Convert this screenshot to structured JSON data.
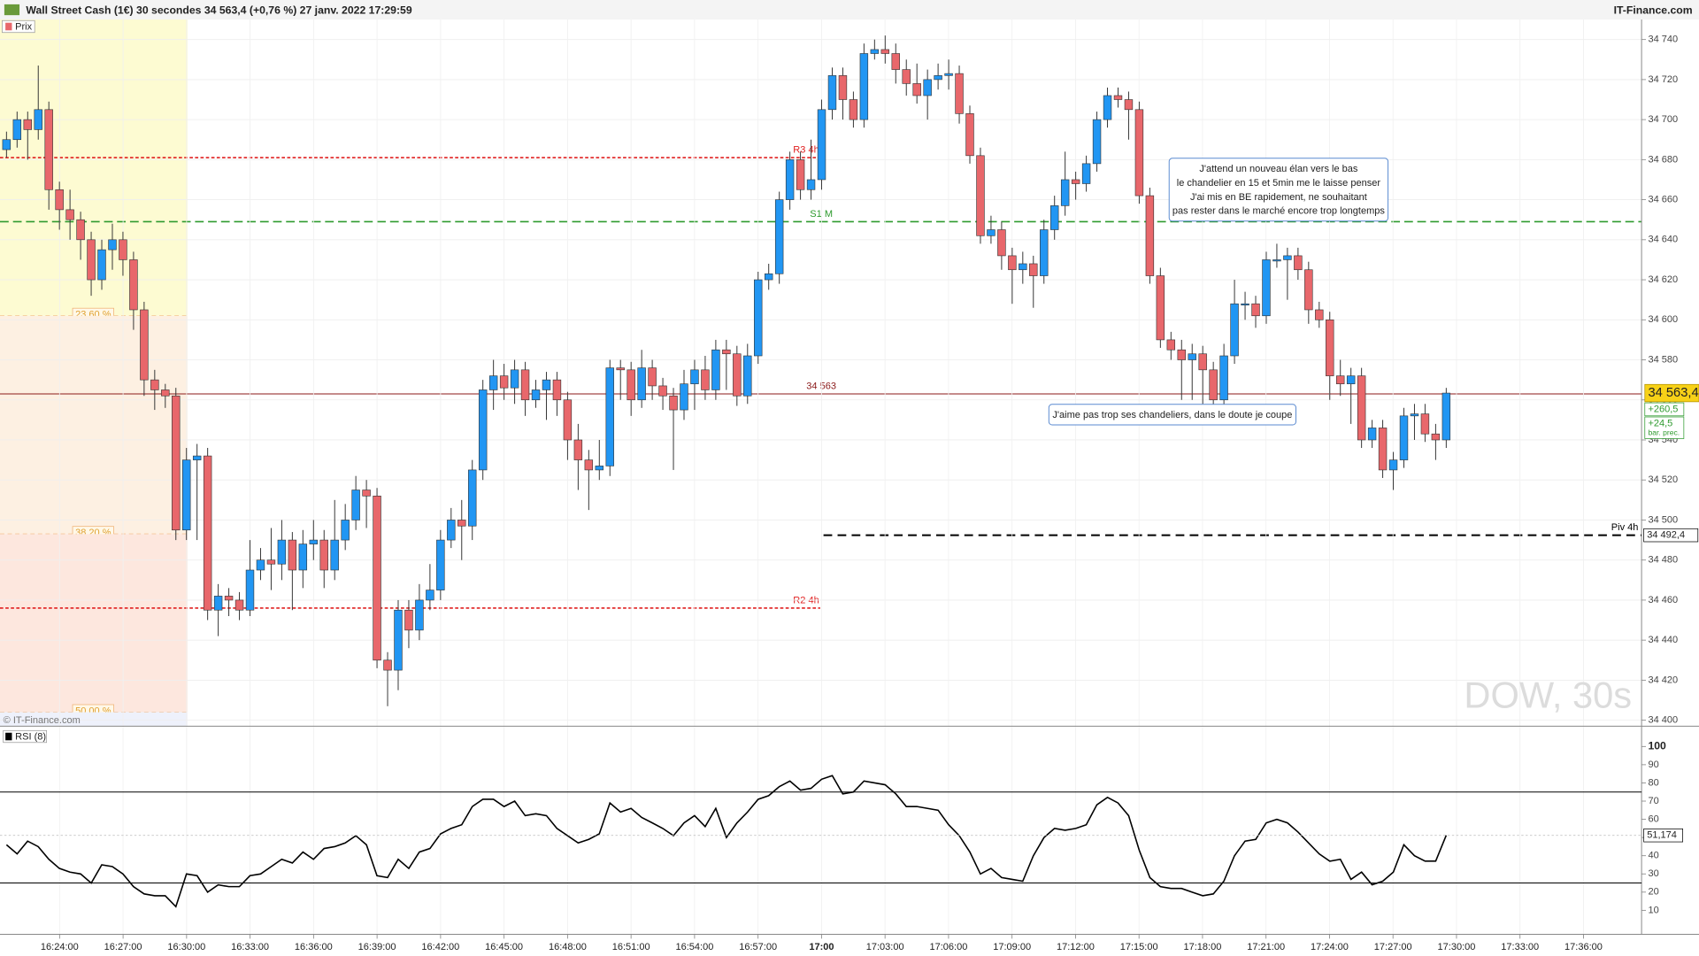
{
  "chart_data": {
    "type": "candlestick",
    "title": "Wall Street Cash (1€) 30 secondes 34 563,4 (+0,76 %) 27 janv. 2022 17:29:59",
    "brand": "IT-Finance.com",
    "price_label": "Prix",
    "copyright": "© IT-Finance.com",
    "watermark": "DOW, 30s",
    "up_color": "#2196f3",
    "down_color": "#e8676b",
    "ylim": [
      34397,
      34750
    ],
    "yticks": [
      {
        "value": 34400,
        "label": "34 400"
      },
      {
        "value": 34420,
        "label": "34 420"
      },
      {
        "value": 34440,
        "label": "34 440"
      },
      {
        "value": 34460,
        "label": "34 460"
      },
      {
        "value": 34480,
        "label": "34 480"
      },
      {
        "value": 34500,
        "label": "34 500"
      },
      {
        "value": 34520,
        "label": "34 520"
      },
      {
        "value": 34540,
        "label": "34 540"
      },
      {
        "value": 34560,
        "label": "34 560"
      },
      {
        "value": 34580,
        "label": "34 580"
      },
      {
        "value": 34600,
        "label": "34 600"
      },
      {
        "value": 34620,
        "label": "34 620"
      },
      {
        "value": 34640,
        "label": "34 640"
      },
      {
        "value": 34660,
        "label": "34 660"
      },
      {
        "value": 34680,
        "label": "34 680"
      },
      {
        "value": 34700,
        "label": "34 700"
      },
      {
        "value": 34720,
        "label": "34 720"
      },
      {
        "value": 34740,
        "label": "34 740"
      }
    ],
    "time_labels": [
      "16:24:00",
      "16:27:00",
      "16:30:00",
      "16:33:00",
      "16:36:00",
      "16:39:00",
      "16:42:00",
      "16:45:00",
      "16:48:00",
      "16:51:00",
      "16:54:00",
      "16:57:00",
      "17:00",
      "17:03:00",
      "17:06:00",
      "17:09:00",
      "17:12:00",
      "17:15:00",
      "17:18:00",
      "17:21:00",
      "17:24:00",
      "17:27:00",
      "17:30:00",
      "17:33:00",
      "17:36:00"
    ],
    "open": [
      34685,
      34690,
      34700,
      34695,
      34705,
      34665,
      34655,
      34650,
      34640,
      34620,
      34635,
      34640,
      34630,
      34605,
      34570,
      34565,
      34562,
      34495,
      34530,
      34532,
      34455,
      34462,
      34460,
      34455,
      34475,
      34480,
      34478,
      34490,
      34475,
      34488,
      34490,
      34475,
      34490,
      34500,
      34515,
      34512,
      34430,
      34425,
      34455,
      34445,
      34460,
      34465,
      34490,
      34500,
      34497,
      34525,
      34565,
      34572,
      34566,
      34575,
      34560,
      34565,
      34570,
      34560,
      34540,
      34530,
      34525,
      34527,
      34576,
      34575,
      34560,
      34576,
      34567,
      34562,
      34555,
      34568,
      34575,
      34565,
      34585,
      34583,
      34562,
      34582,
      34620,
      34623,
      34660,
      34680,
      34665,
      34670,
      34705,
      34722,
      34710,
      34700,
      34733,
      34735,
      34733,
      34725,
      34718,
      34712,
      34720,
      34722,
      34723,
      34703,
      34682,
      34642,
      34645,
      34632,
      34625,
      34628,
      34622,
      34645,
      34657,
      34670,
      34668,
      34678,
      34700,
      34712,
      34710,
      34705,
      34662,
      34622,
      34590,
      34585,
      34580,
      34583,
      34575,
      34560,
      34582,
      34608,
      34608,
      34602,
      34630,
      34630,
      34632,
      34625,
      34605,
      34600,
      34572,
      34568,
      34572,
      34540,
      34546,
      34525,
      34530,
      34552,
      34553,
      34543,
      34540
    ],
    "high": [
      34694,
      34704,
      34704,
      34727,
      34709,
      34669,
      34665,
      34654,
      34644,
      34640,
      34648,
      34644,
      34634,
      34609,
      34575,
      34568,
      34566,
      34536,
      34538,
      34536,
      34468,
      34466,
      34464,
      34490,
      34486,
      34496,
      34500,
      34494,
      34495,
      34500,
      34495,
      34510,
      34508,
      34522,
      34520,
      34516,
      34434,
      34460,
      34460,
      34468,
      34478,
      34495,
      34506,
      34510,
      34530,
      34570,
      34580,
      34578,
      34580,
      34579,
      34570,
      34574,
      34574,
      34564,
      34548,
      34535,
      34540,
      34580,
      34580,
      34579,
      34585,
      34580,
      34571,
      34566,
      34575,
      34580,
      34582,
      34590,
      34590,
      34587,
      34588,
      34624,
      34628,
      34664,
      34684,
      34684,
      34690,
      34710,
      34726,
      34726,
      34714,
      34738,
      34740,
      34742,
      34738,
      34730,
      34728,
      34725,
      34728,
      34730,
      34727,
      34707,
      34686,
      34652,
      34649,
      34636,
      34634,
      34632,
      34650,
      34662,
      34684,
      34674,
      34682,
      34704,
      34716,
      34716,
      34714,
      34709,
      34666,
      34626,
      34594,
      34590,
      34588,
      34587,
      34579,
      34588,
      34620,
      34614,
      34612,
      34634,
      34638,
      34636,
      34636,
      34629,
      34609,
      34604,
      34580,
      34576,
      34576,
      34550,
      34550,
      34534,
      34556,
      34558,
      34558,
      34548,
      34566
    ],
    "low": [
      34681,
      34686,
      34680,
      34690,
      34655,
      34645,
      34640,
      34630,
      34612,
      34615,
      34625,
      34622,
      34595,
      34562,
      34555,
      34556,
      34490,
      34490,
      34490,
      34450,
      34442,
      34452,
      34450,
      34452,
      34470,
      34465,
      34470,
      34455,
      34466,
      34480,
      34466,
      34470,
      34485,
      34495,
      34496,
      34426,
      34407,
      34415,
      34436,
      34440,
      34455,
      34460,
      34486,
      34480,
      34490,
      34520,
      34555,
      34560,
      34558,
      34552,
      34556,
      34550,
      34552,
      34530,
      34515,
      34505,
      34520,
      34522,
      34560,
      34552,
      34556,
      34560,
      34555,
      34525,
      34550,
      34555,
      34560,
      34560,
      34565,
      34557,
      34558,
      34578,
      34615,
      34618,
      34655,
      34660,
      34660,
      34665,
      34700,
      34700,
      34696,
      34696,
      34730,
      34728,
      34718,
      34712,
      34708,
      34700,
      34715,
      34715,
      34698,
      34678,
      34638,
      34638,
      34625,
      34608,
      34618,
      34606,
      34618,
      34640,
      34652,
      34660,
      34664,
      34674,
      34696,
      34706,
      34690,
      34658,
      34618,
      34586,
      34580,
      34560,
      34560,
      34558,
      34556,
      34556,
      34578,
      34600,
      34596,
      34598,
      34626,
      34610,
      34620,
      34598,
      34596,
      34560,
      34562,
      34548,
      34536,
      34536,
      34521,
      34515,
      34526,
      34540,
      34539,
      34530,
      34536
    ],
    "close": [
      34690,
      34700,
      34695,
      34705,
      34665,
      34655,
      34650,
      34640,
      34620,
      34635,
      34640,
      34630,
      34605,
      34570,
      34565,
      34562,
      34495,
      34530,
      34532,
      34455,
      34462,
      34460,
      34455,
      34475,
      34480,
      34478,
      34490,
      34475,
      34488,
      34490,
      34475,
      34490,
      34500,
      34515,
      34512,
      34430,
      34425,
      34455,
      34445,
      34460,
      34465,
      34490,
      34500,
      34497,
      34525,
      34565,
      34572,
      34566,
      34575,
      34560,
      34565,
      34570,
      34560,
      34540,
      34530,
      34525,
      34527,
      34576,
      34575,
      34560,
      34576,
      34567,
      34562,
      34555,
      34568,
      34575,
      34565,
      34585,
      34583,
      34562,
      34582,
      34620,
      34623,
      34660,
      34680,
      34665,
      34670,
      34705,
      34722,
      34710,
      34700,
      34733,
      34735,
      34733,
      34725,
      34718,
      34712,
      34720,
      34722,
      34723,
      34703,
      34682,
      34642,
      34645,
      34632,
      34625,
      34628,
      34622,
      34645,
      34657,
      34670,
      34668,
      34678,
      34700,
      34712,
      34710,
      34705,
      34662,
      34622,
      34590,
      34585,
      34580,
      34583,
      34575,
      34560,
      34582,
      34608,
      34608,
      34602,
      34630,
      34630,
      34632,
      34625,
      34605,
      34600,
      34572,
      34568,
      34572,
      34540,
      34546,
      34525,
      34530,
      34552,
      34553,
      34543,
      34540,
      34563.4
    ],
    "last_label": "34 563,4",
    "change_label": "+260,5",
    "bar_change_label": "+24,5",
    "bar_note": "bar. prec.",
    "levels": [
      {
        "label": "R3 4h",
        "value": 34681,
        "color": "#e02020"
      },
      {
        "label": "S1 M",
        "value": 34649,
        "color": "#2e9a2e"
      },
      {
        "label": "34 563",
        "value": 34563,
        "color": "#8b1a1a"
      },
      {
        "label": "R2 4h",
        "value": 34456,
        "color": "#e02020"
      },
      {
        "label": "Piv 4h",
        "value": 34492.4,
        "color": "#000000",
        "axis_label": "34 492,4"
      }
    ],
    "fib_levels": [
      {
        "label": "23,60 %",
        "value": 34602
      },
      {
        "label": "38,20 %",
        "value": 34493
      },
      {
        "label": "50,00 %",
        "value": 34404
      }
    ],
    "annotations": [
      {
        "lines": [
          "J'attend un nouveau élan vers le bas",
          "le chandelier en 15 et 5min me le laisse penser",
          "J'ai mis en BE rapidement, ne souhaitant",
          "pas rester dans le marché encore trop longtemps"
        ]
      },
      {
        "lines": [
          "J'aime pas trop ses chandeliers, dans le doute je coupe"
        ]
      }
    ],
    "rsi": {
      "label": "RSI (8)",
      "ylim": [
        -2,
        104
      ],
      "yticks": [
        10,
        20,
        30,
        40,
        50,
        60,
        70,
        80,
        90,
        100
      ],
      "bands": [
        25,
        75
      ],
      "last_label": "51,174",
      "values": [
        46,
        41,
        48,
        45,
        38,
        33,
        31,
        30,
        25,
        35,
        34,
        30,
        23,
        19,
        18,
        18,
        12,
        30,
        29,
        20,
        24,
        23,
        23,
        29,
        30,
        34,
        38,
        36,
        42,
        38,
        44,
        45,
        47,
        51,
        46,
        29,
        28,
        38,
        33,
        42,
        44,
        52,
        55,
        57,
        67,
        71,
        71,
        67,
        70,
        62,
        63,
        62,
        55,
        51,
        47,
        49,
        52,
        69,
        64,
        66,
        61,
        58,
        55,
        51,
        58,
        62,
        56,
        66,
        50,
        58,
        64,
        71,
        73,
        78,
        81,
        76,
        77,
        82,
        84,
        74,
        75,
        81,
        80,
        79,
        74,
        67,
        67,
        66,
        65,
        57,
        51,
        42,
        30,
        33,
        28,
        27,
        26,
        40,
        50,
        55,
        54,
        55,
        57,
        68,
        72,
        69,
        62,
        43,
        28,
        23,
        22,
        22,
        20,
        18,
        19,
        26,
        40,
        48,
        49,
        58,
        60,
        58,
        53,
        47,
        41,
        37,
        38,
        27,
        31,
        24,
        26,
        31,
        46,
        40,
        37,
        37,
        51.174
      ]
    }
  }
}
